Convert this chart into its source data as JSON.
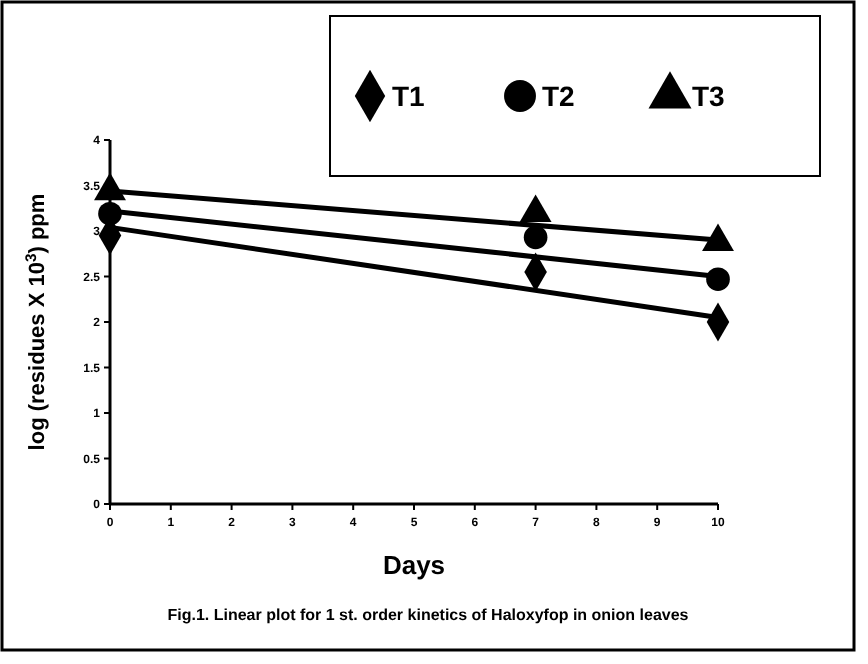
{
  "chart_data": {
    "type": "scatter",
    "xlabel": "Days",
    "ylabel": "log (residues X 10$^{3}$) ppm",
    "xlim": [
      0,
      10
    ],
    "ylim": [
      0,
      4
    ],
    "xticks": [
      0,
      1,
      2,
      3,
      4,
      5,
      6,
      7,
      8,
      9,
      10
    ],
    "yticks": [
      0,
      0.5,
      1,
      1.5,
      2,
      2.5,
      3,
      3.5,
      4
    ],
    "legend": "top right",
    "grid": false,
    "series": [
      {
        "name": "T1",
        "color": "#000000",
        "marker": "diamond",
        "x": [
          0,
          7,
          10
        ],
        "values": [
          2.95,
          2.55,
          2.0
        ]
      },
      {
        "name": "T2",
        "color": "#000000",
        "marker": "circle",
        "x": [
          0,
          7,
          10
        ],
        "values": [
          3.19,
          2.93,
          2.47
        ]
      },
      {
        "name": "T3",
        "color": "#000000",
        "marker": "triangle",
        "x": [
          0,
          7,
          10
        ],
        "values": [
          3.44,
          3.2,
          2.88
        ]
      },
      {
        "type": "line",
        "color": "#000000",
        "marker": "none",
        "x": [
          0,
          10
        ],
        "values": [
          3.04,
          2.05
        ]
      },
      {
        "type": "line",
        "color": "#000000",
        "marker": "none",
        "x": [
          0,
          10
        ],
        "values": [
          3.22,
          2.5
        ]
      },
      {
        "type": "line",
        "color": "#000000",
        "marker": "none",
        "x": [
          0,
          10
        ],
        "values": [
          3.44,
          2.9
        ]
      }
    ],
    "annotations": [
      "Fig.1. Linear plot for 1 st. order kinetics of Haloxyfop in onion leaves"
    ]
  }
}
